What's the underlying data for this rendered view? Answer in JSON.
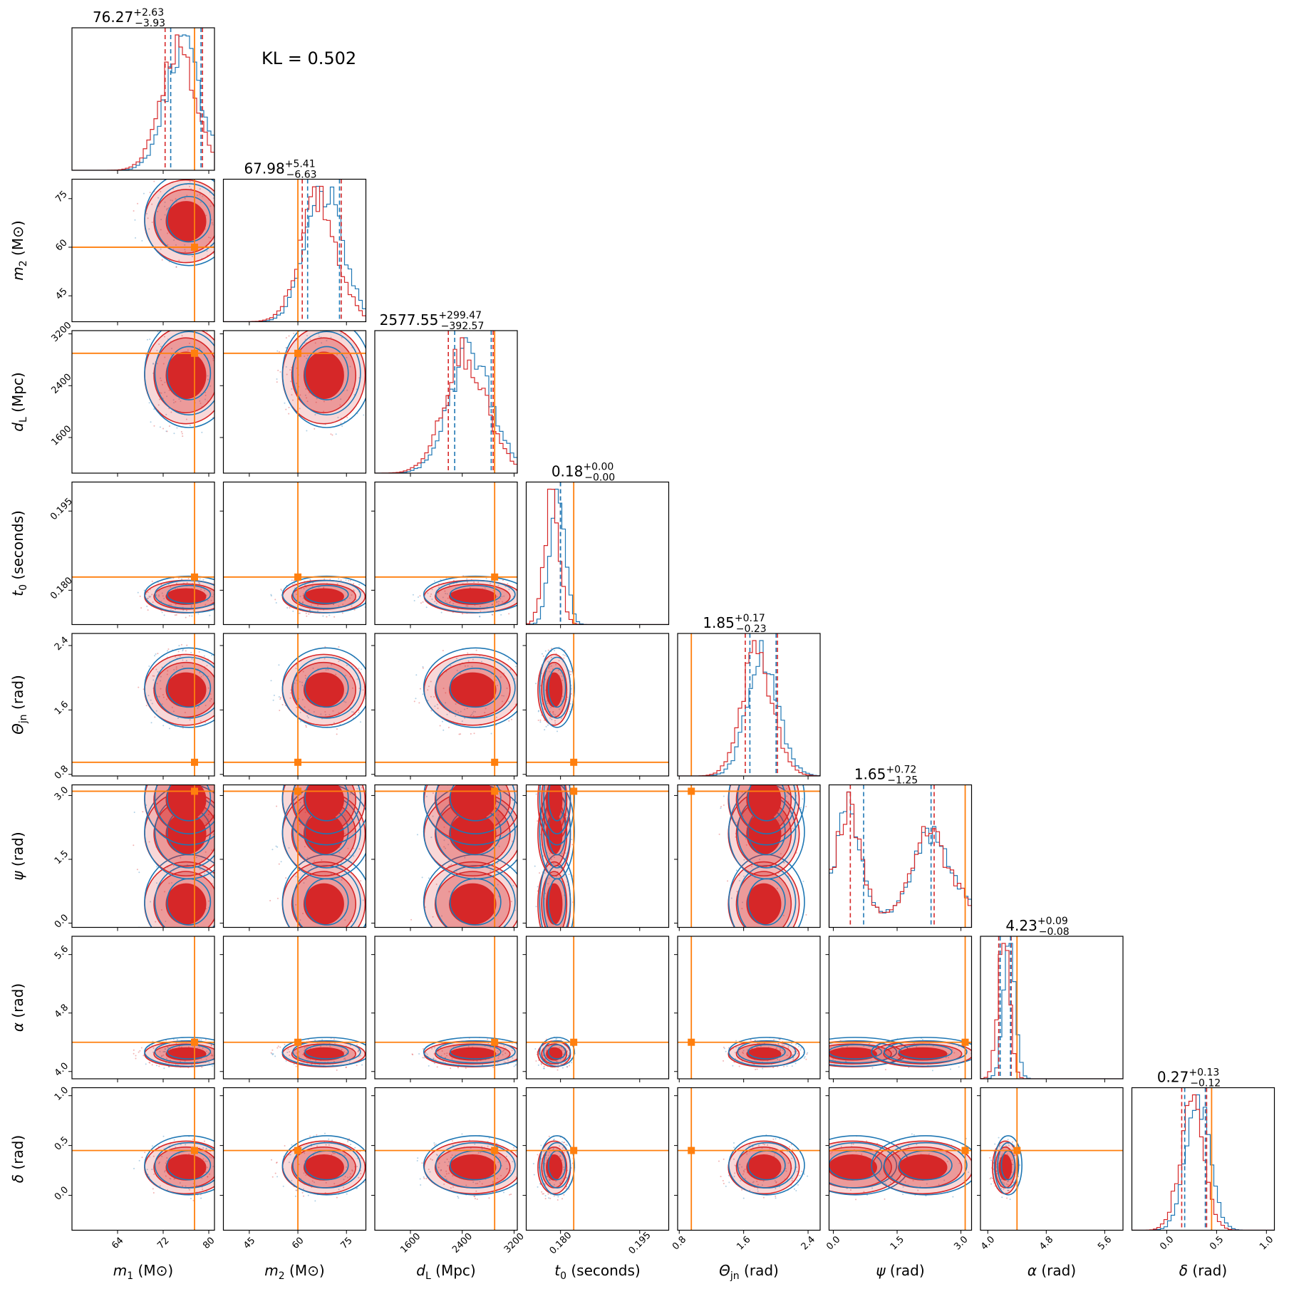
{
  "chart_data": {
    "type": "corner",
    "annotation": "KL = 0.502",
    "colors": {
      "posterior_a": "#d62728",
      "posterior_b": "#1f77b4",
      "truth": "#ff7f0e"
    },
    "parameters": [
      {
        "key": "m1",
        "label_main": "m",
        "label_sub": "1",
        "label_unit": " (M⊙)",
        "range": [
          56,
          81
        ],
        "ticks": [
          64,
          72,
          80
        ],
        "tick_labels": [
          "64",
          "72",
          "80"
        ],
        "truth": 77.5,
        "median": 76.27,
        "plus": "+2.63",
        "minus": "−3.93",
        "title_value": "76.27",
        "mean": 76.0,
        "sd": 3.3,
        "skew": -0.9
      },
      {
        "key": "m2",
        "label_main": "m",
        "label_sub": "2",
        "label_unit": " (M⊙)",
        "range": [
          37,
          81
        ],
        "ticks": [
          45,
          60,
          75
        ],
        "tick_labels": [
          "45",
          "60",
          "75"
        ],
        "truth": 60.0,
        "median": 67.98,
        "plus": "+5.41",
        "minus": "−6.63",
        "title_value": "67.98",
        "mean": 68.0,
        "sd": 5.8,
        "skew": -0.4
      },
      {
        "key": "dL",
        "label_main": "d",
        "label_sub": "L",
        "label_unit": " (Mpc)",
        "range": [
          1050,
          3250
        ],
        "ticks": [
          1600,
          2400,
          3200
        ],
        "tick_labels": [
          "1600",
          "2400",
          "3200"
        ],
        "truth": 2900,
        "median": 2577.55,
        "plus": "+299.47",
        "minus": "−392.57",
        "title_value": "2577.55",
        "mean": 2560,
        "sd": 340,
        "skew": -0.7
      },
      {
        "key": "t0",
        "label_main": "t",
        "label_sub": "0",
        "label_unit": " (seconds)",
        "range": [
          0.1735,
          0.2005
        ],
        "ticks": [
          0.18,
          0.195
        ],
        "tick_labels": [
          "0.180",
          "0.195"
        ],
        "truth": 0.1825,
        "median": 0.18,
        "plus": "+0.00",
        "minus": "−0.00",
        "title_value": "0.18",
        "mean": 0.1788,
        "sd": 0.0014,
        "skew": 0.2
      },
      {
        "key": "thjn",
        "label_main": "Θ",
        "label_sub": "jn",
        "label_unit": " (rad)",
        "range": [
          0.78,
          2.55
        ],
        "ticks": [
          0.8,
          1.6,
          2.4
        ],
        "tick_labels": [
          "0.8",
          "1.6",
          "2.4"
        ],
        "truth": 0.95,
        "median": 1.85,
        "plus": "+0.17",
        "minus": "−0.23",
        "title_value": "1.85",
        "mean": 1.85,
        "sd": 0.2,
        "skew": -0.8
      },
      {
        "key": "psi",
        "label_main": "ψ",
        "label_sub": "",
        "label_unit": " (rad)",
        "range": [
          -0.1,
          3.25
        ],
        "ticks": [
          0.0,
          1.5,
          3.0
        ],
        "tick_labels": [
          "0.0",
          "1.5",
          "3.0"
        ],
        "truth": 3.1,
        "median": 1.65,
        "plus": "+0.72",
        "minus": "−1.25",
        "title_value": "1.65",
        "mean": 1.65,
        "sd": 0.9,
        "skew": 0.0
      },
      {
        "key": "alpha",
        "label_main": "α",
        "label_sub": "",
        "label_unit": " (rad)",
        "range": [
          3.9,
          5.85
        ],
        "ticks": [
          4.0,
          4.8,
          5.6
        ],
        "tick_labels": [
          "4.0",
          "4.8",
          "5.6"
        ],
        "truth": 4.4,
        "median": 4.23,
        "plus": "+0.09",
        "minus": "−0.08",
        "title_value": "4.23",
        "mean": 4.24,
        "sd": 0.08,
        "skew": 0.8
      },
      {
        "key": "delta",
        "label_main": "δ",
        "label_sub": "",
        "label_unit": " (rad)",
        "range": [
          -0.35,
          1.08
        ],
        "ticks": [
          0.0,
          0.5,
          1.0
        ],
        "tick_labels": [
          "0.0",
          "0.5",
          "1.0"
        ],
        "truth": 0.45,
        "median": 0.27,
        "plus": "+0.13",
        "minus": "−0.12",
        "title_value": "0.27",
        "mean": 0.28,
        "sd": 0.12,
        "skew": 0.0
      }
    ],
    "grid": false,
    "contour_levels": [
      0.39,
      0.86,
      0.99
    ]
  }
}
